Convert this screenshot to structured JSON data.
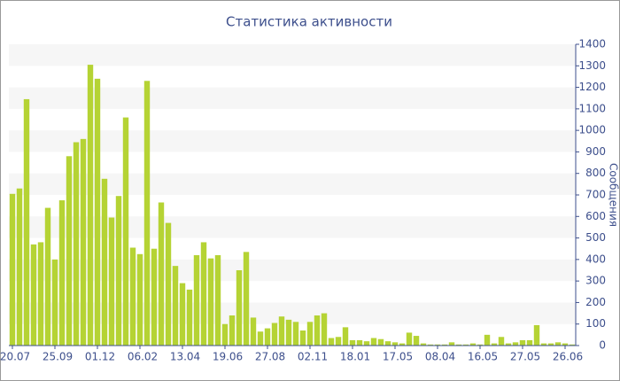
{
  "chart_data": {
    "type": "bar",
    "title": "Статистика активности",
    "y_label": "Сообщения",
    "categories": [
      "20.07",
      null,
      null,
      null,
      null,
      null,
      "25.09",
      null,
      null,
      null,
      null,
      null,
      "01.12",
      null,
      null,
      null,
      null,
      null,
      "06.02",
      null,
      null,
      null,
      null,
      null,
      "13.04",
      null,
      null,
      null,
      null,
      null,
      "19.06",
      null,
      null,
      null,
      null,
      null,
      "27.08",
      null,
      null,
      null,
      null,
      null,
      "02.11",
      null,
      null,
      null,
      null,
      null,
      "18.01",
      null,
      null,
      null,
      null,
      null,
      "17.05",
      null,
      null,
      null,
      null,
      null,
      "08.04",
      null,
      null,
      null,
      null,
      null,
      "16.05",
      null,
      null,
      null,
      null,
      null,
      "27.05",
      null,
      null,
      null,
      null,
      null,
      "26.06",
      null
    ],
    "values": [
      705,
      730,
      1145,
      470,
      480,
      640,
      400,
      675,
      880,
      945,
      960,
      1305,
      1240,
      775,
      595,
      695,
      1060,
      455,
      425,
      1230,
      450,
      665,
      570,
      370,
      290,
      260,
      420,
      480,
      405,
      420,
      100,
      140,
      350,
      435,
      130,
      65,
      80,
      105,
      135,
      120,
      110,
      70,
      110,
      140,
      150,
      35,
      40,
      85,
      25,
      25,
      20,
      35,
      30,
      20,
      15,
      10,
      60,
      45,
      10,
      5,
      5,
      5,
      15,
      5,
      5,
      10,
      5,
      50,
      10,
      40,
      10,
      15,
      25,
      25,
      95,
      10,
      10,
      15,
      10,
      5
    ],
    "color": "#b5d334",
    "ylim": [
      0,
      1400
    ],
    "yticks": [
      0,
      100,
      200,
      300,
      400,
      500,
      600,
      700,
      800,
      900,
      1000,
      1100,
      1200,
      1300,
      1400
    ],
    "grid": true
  }
}
